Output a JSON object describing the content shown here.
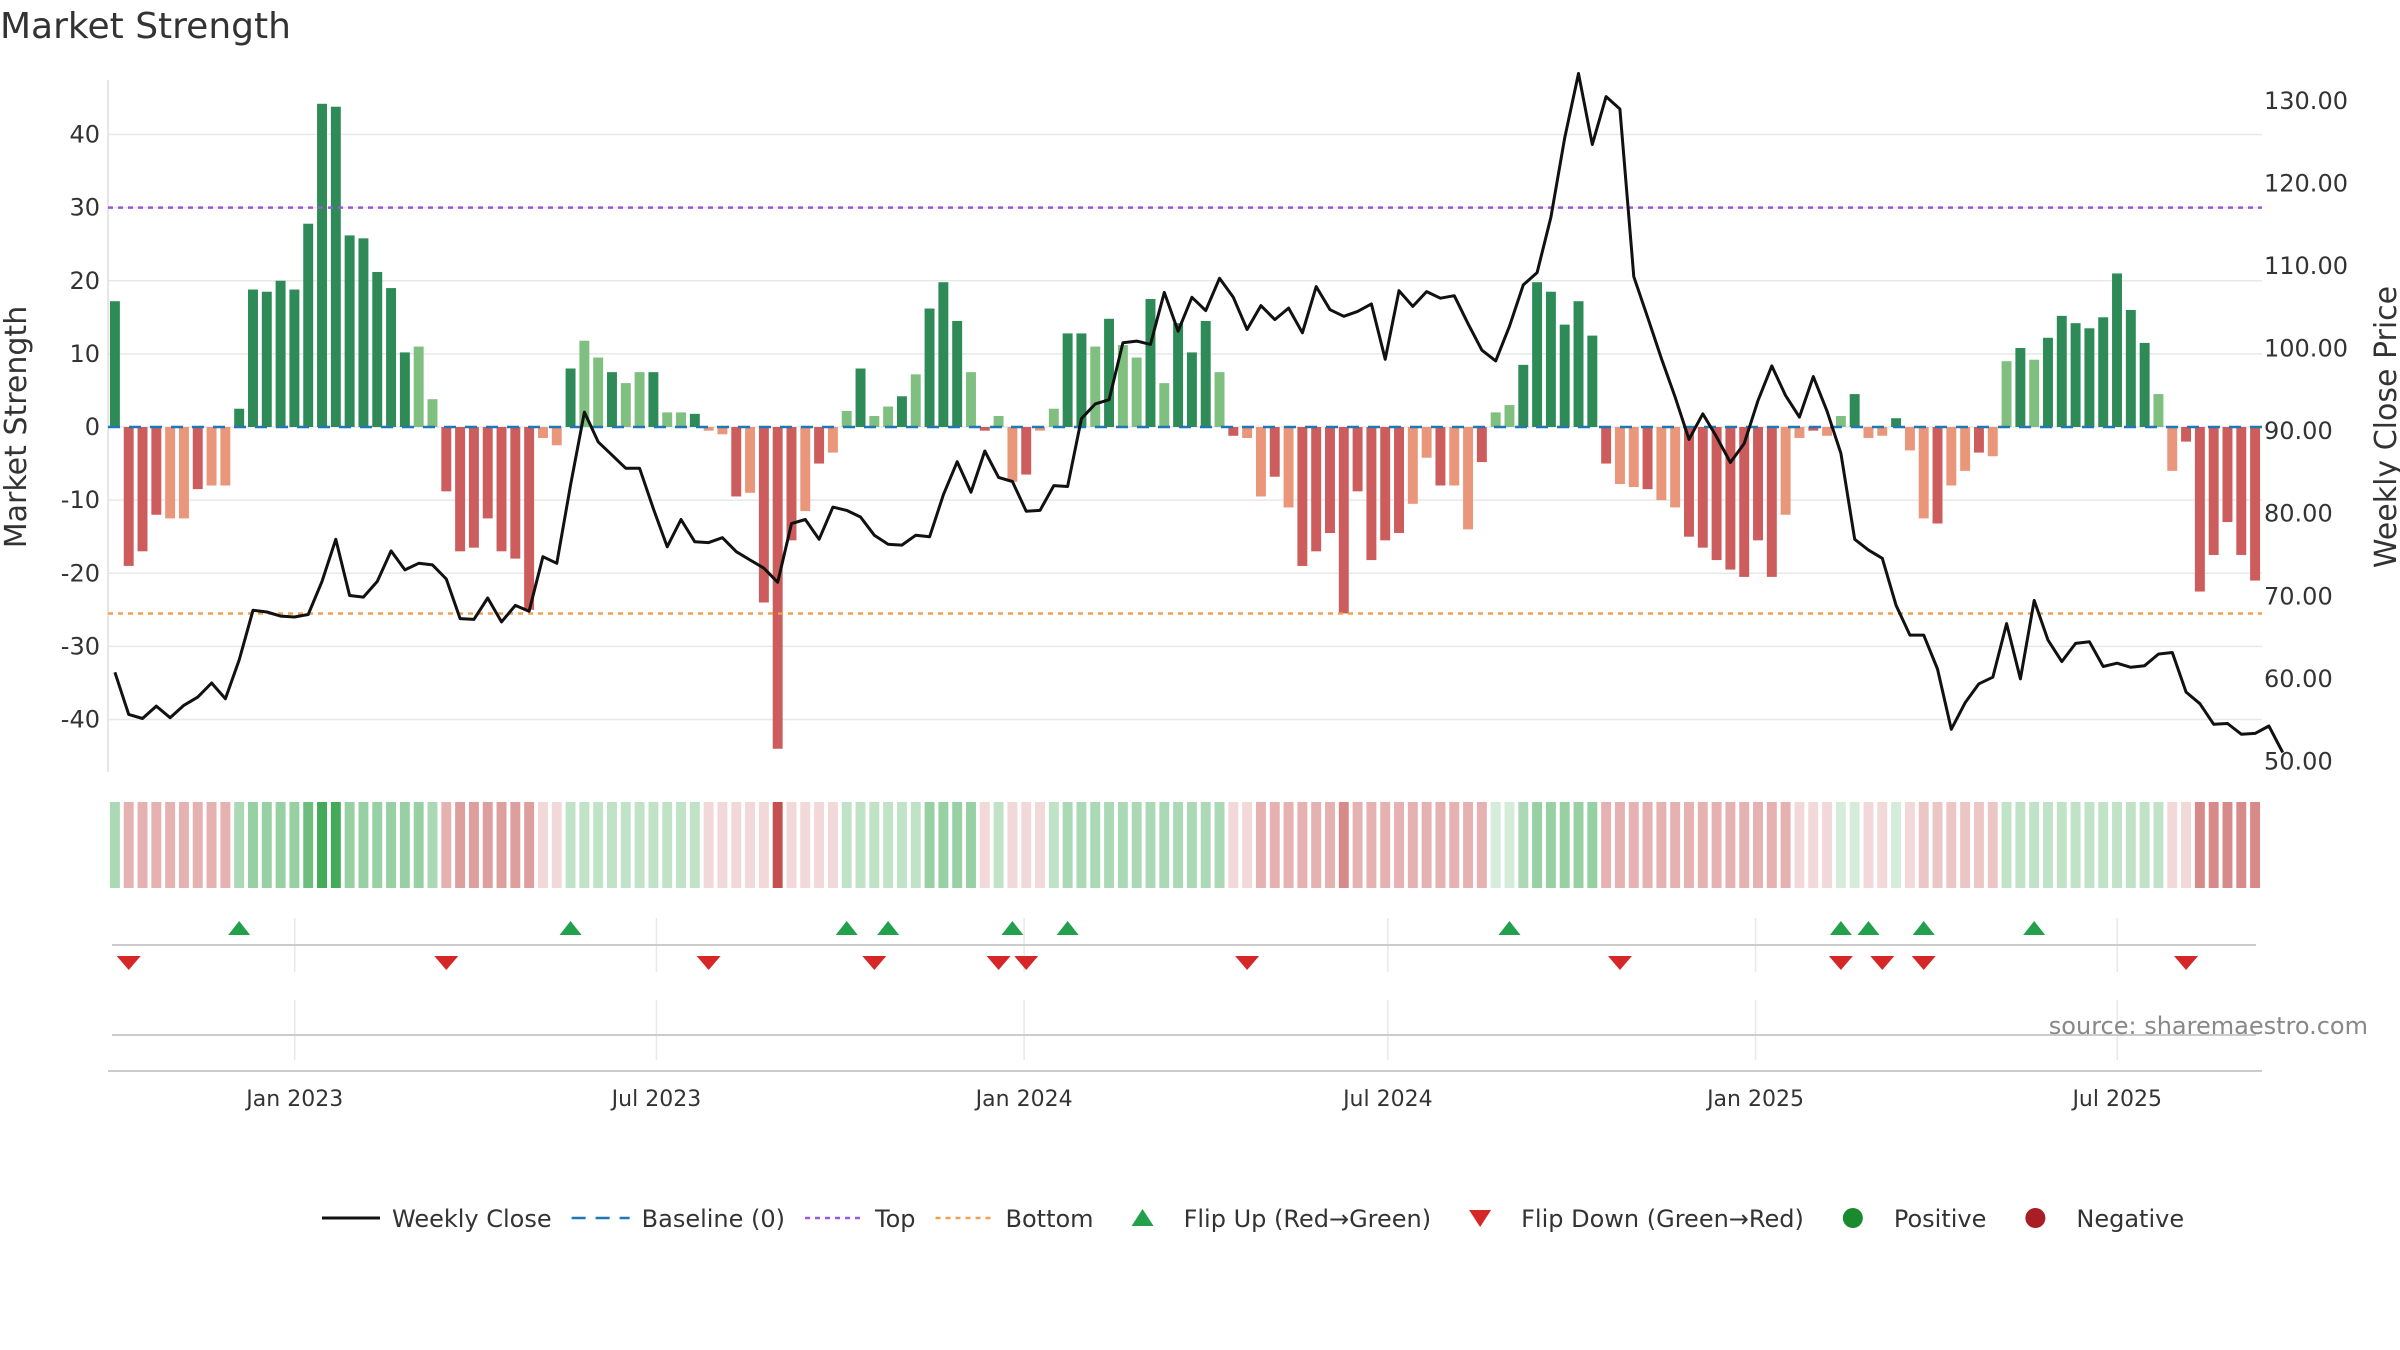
{
  "title": "Market Strength",
  "source_text": "source: sharemaestro.com",
  "colors": {
    "strong_green": "#2e8b57",
    "light_green": "#7fbf7f",
    "strong_red": "#cd5c5c",
    "light_red": "#e9967a",
    "price_line": "#111111",
    "baseline": "#1f77b4",
    "top": "#9b59d6",
    "bottom": "#f0a050",
    "flip_up": "#22a04b",
    "flip_down": "#d62728",
    "positive": "#1a8a2e",
    "negative": "#a81e24",
    "grid": "#e8e8e8"
  },
  "chart_data": {
    "type": "bar+line",
    "title": "Market Strength",
    "start_week": "2022-10-03",
    "end_week": "2025-09-08",
    "x_ticks": [
      {
        "label": "Jan 2023",
        "date": "2023-01-01"
      },
      {
        "label": "Jul 2023",
        "date": "2023-07-01"
      },
      {
        "label": "Jan 2024",
        "date": "2024-01-01"
      },
      {
        "label": "Jul 2024",
        "date": "2024-07-01"
      },
      {
        "label": "Jan 2025",
        "date": "2025-01-01"
      },
      {
        "label": "Jul 2025",
        "date": "2025-07-01"
      }
    ],
    "left_axis": {
      "label": "Market Strength",
      "ylim": [
        -48,
        48
      ],
      "ticks": [
        40,
        30,
        20,
        10,
        0,
        -10,
        -20,
        -30,
        -40
      ]
    },
    "right_axis": {
      "label": "Weekly Close Price",
      "ylim": [
        48,
        133
      ],
      "ticks": [
        "130.00",
        "120.00",
        "110.00",
        "100.00",
        "90.00",
        "80.00",
        "70.00",
        "60.00",
        "50.00"
      ]
    },
    "top_level": 30,
    "bottom_level": -25.5,
    "strength": [
      17.2,
      -19,
      -17,
      -12,
      -12.5,
      -12.5,
      -8.5,
      -8,
      -8,
      2.5,
      18.8,
      18.5,
      20,
      18.8,
      27.8,
      44.2,
      43.8,
      26.2,
      25.8,
      21.2,
      19,
      10.2,
      11,
      3.8,
      -8.8,
      -17,
      -16.5,
      -12.5,
      -17,
      -18,
      -25,
      -1.5,
      -2.5,
      8,
      11.8,
      9.5,
      7.5,
      6,
      7.5,
      7.5,
      2,
      2,
      1.8,
      -0.5,
      -1,
      -9.5,
      -9,
      -24,
      -44,
      -15.5,
      -11.5,
      -5,
      -3.5,
      2.2,
      8,
      1.5,
      2.8,
      4.2,
      7.2,
      16.2,
      19.8,
      14.5,
      7.5,
      -0.5,
      1.5,
      -7.5,
      -6.5,
      -0.5,
      2.5,
      12.8,
      12.8,
      11,
      14.8,
      11.2,
      9.5,
      17.5,
      6,
      14.2,
      10.2,
      14.5,
      7.5,
      -1.2,
      -1.5,
      -9.5,
      -6.8,
      -11,
      -19,
      -17,
      -14.5,
      -25.5,
      -8.8,
      -18.2,
      -15.5,
      -14.5,
      -10.5,
      -4.2,
      -8,
      -8,
      -14,
      -4.8,
      2,
      3,
      8.5,
      19.8,
      18.5,
      14,
      17.2,
      12.5,
      -5,
      -7.8,
      -8.2,
      -8.5,
      -10,
      -11,
      -15,
      -16.5,
      -18.2,
      -19.5,
      -20.5,
      -15.5,
      -20.5,
      -12,
      -1.5,
      -0.5,
      -1.2,
      1.5,
      4.5,
      -1.5,
      -1.2,
      1.2,
      -3.2,
      -12.5,
      -13.2,
      -8,
      -6,
      -3.5,
      -4,
      9,
      10.8,
      9.2,
      12.2,
      15.2,
      14.2,
      13.5,
      15,
      21,
      16,
      11.5,
      4.5,
      -6,
      -2,
      -22.5,
      -17.5,
      -13,
      -17.5,
      -21
    ],
    "close": [
      60.8,
      55.7,
      55.2,
      56.7,
      55.3,
      56.8,
      57.8,
      59.5,
      57.6,
      62.3,
      68.3,
      68.1,
      67.6,
      67.5,
      67.8,
      71.8,
      76.9,
      70.1,
      69.9,
      71.8,
      75.5,
      73.2,
      74,
      73.8,
      72.1,
      67.3,
      67.2,
      69.8,
      66.9,
      68.9,
      68.2,
      74.8,
      74,
      83.5,
      92.3,
      88.7,
      87.1,
      85.5,
      85.5,
      80.6,
      76,
      79.3,
      76.6,
      76.5,
      77.1,
      75.4,
      74.4,
      73.4,
      71.7,
      78.8,
      79.3,
      76.9,
      80.8,
      80.4,
      79.6,
      77.4,
      76.3,
      76.2,
      77.4,
      77.2,
      82.3,
      86.3,
      82.6,
      87.6,
      84.4,
      83.9,
      80.3,
      80.4,
      83.4,
      83.3,
      91.5,
      93.3,
      93.8,
      100.7,
      100.9,
      100.5,
      106.8,
      102.1,
      106.2,
      104.6,
      108.5,
      106.2,
      102.3,
      105.2,
      103.5,
      104.9,
      101.9,
      107.5,
      104.7,
      103.9,
      104.5,
      105.4,
      98.7,
      107,
      105.1,
      106.9,
      106.1,
      106.4,
      103,
      99.8,
      98.5,
      102.7,
      107.7,
      109.2,
      115.9,
      125.5,
      133.3,
      124.7,
      130.5,
      129,
      108.7,
      103.8,
      98.8,
      94.1,
      89,
      92.1,
      89.3,
      86.2,
      88.5,
      93.7,
      97.9,
      94.3,
      91.7,
      96.6,
      92.4,
      87.3,
      76.9,
      75.6,
      74.6,
      68.9,
      65.3,
      65.3,
      61.2,
      53.9,
      57.1,
      59.4,
      60.2,
      66.7,
      60,
      69.5,
      64.7,
      62.1,
      64.3,
      64.5,
      61.5,
      61.9,
      61.4,
      61.6,
      63,
      63.2,
      58.4,
      57,
      54.5,
      54.6,
      53.3,
      53.4,
      54.3,
      51.1
    ],
    "regime_strip": [
      0.4,
      -0.4,
      -0.4,
      -0.4,
      -0.4,
      -0.4,
      -0.4,
      -0.4,
      -0.4,
      0.4,
      0.5,
      0.5,
      0.5,
      0.5,
      0.7,
      0.9,
      0.9,
      0.5,
      0.5,
      0.5,
      0.5,
      0.5,
      0.5,
      0.4,
      -0.4,
      -0.5,
      -0.5,
      -0.5,
      -0.5,
      -0.5,
      -0.5,
      -0.2,
      -0.2,
      0.3,
      0.3,
      0.3,
      0.3,
      0.3,
      0.3,
      0.3,
      0.3,
      0.3,
      0.3,
      -0.2,
      -0.2,
      -0.2,
      -0.2,
      -0.2,
      -0.9,
      -0.2,
      -0.2,
      -0.2,
      -0.2,
      0.3,
      0.3,
      0.3,
      0.3,
      0.3,
      0.3,
      0.5,
      0.5,
      0.5,
      0.5,
      -0.2,
      0.3,
      -0.2,
      -0.2,
      -0.2,
      0.3,
      0.4,
      0.4,
      0.4,
      0.4,
      0.4,
      0.4,
      0.4,
      0.4,
      0.4,
      0.4,
      0.4,
      0.4,
      -0.2,
      -0.2,
      -0.4,
      -0.4,
      -0.4,
      -0.4,
      -0.4,
      -0.4,
      -0.6,
      -0.4,
      -0.4,
      -0.4,
      -0.4,
      -0.4,
      -0.4,
      -0.4,
      -0.4,
      -0.4,
      -0.4,
      0.2,
      0.2,
      0.4,
      0.5,
      0.5,
      0.5,
      0.5,
      0.5,
      -0.4,
      -0.4,
      -0.4,
      -0.4,
      -0.4,
      -0.4,
      -0.4,
      -0.4,
      -0.4,
      -0.4,
      -0.4,
      -0.4,
      -0.4,
      -0.4,
      -0.2,
      -0.2,
      -0.2,
      0.2,
      0.2,
      -0.2,
      -0.2,
      0.2,
      -0.2,
      -0.3,
      -0.3,
      -0.3,
      -0.3,
      -0.3,
      -0.3,
      0.3,
      0.3,
      0.3,
      0.3,
      0.3,
      0.3,
      0.3,
      0.3,
      0.3,
      0.3,
      0.3,
      0.3,
      -0.2,
      -0.2,
      -0.6,
      -0.6,
      -0.6,
      -0.6,
      -0.6
    ],
    "flip_up_weeks": [
      9,
      33,
      53,
      56,
      65,
      69,
      101,
      125,
      127,
      131,
      139
    ],
    "flip_down_weeks": [
      1,
      24,
      43,
      55,
      64,
      66,
      82,
      109,
      125,
      128,
      131,
      150
    ],
    "legend": [
      {
        "type": "line",
        "label": "Weekly Close"
      },
      {
        "type": "dash",
        "label": "Baseline (0)"
      },
      {
        "type": "dot",
        "label": "Top"
      },
      {
        "type": "dot-orange",
        "label": "Bottom"
      },
      {
        "type": "tri-up",
        "label": "Flip Up (Red→Green)"
      },
      {
        "type": "tri-down",
        "label": "Flip Down (Green→Red)"
      },
      {
        "type": "circle-pos",
        "label": "Positive"
      },
      {
        "type": "circle-neg",
        "label": "Negative"
      }
    ]
  }
}
